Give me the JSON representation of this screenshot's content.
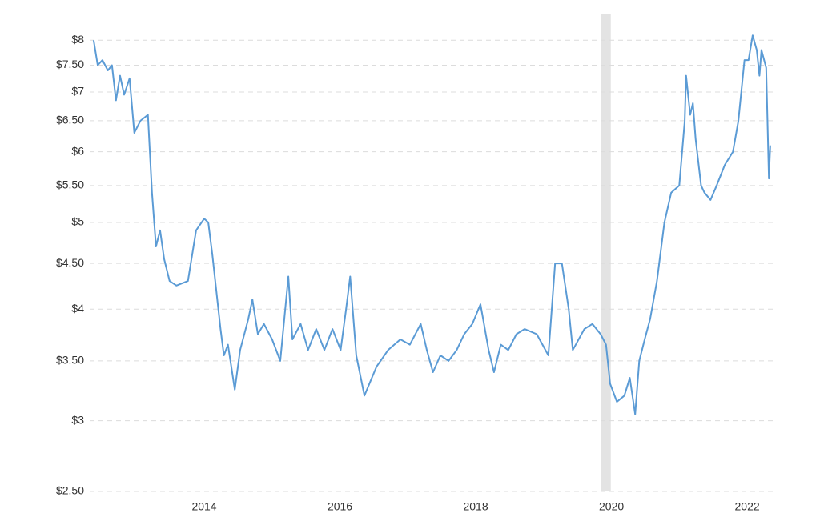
{
  "chart_data": {
    "type": "line",
    "log_scale_y": true,
    "grid": true,
    "xlim": [
      2012.25,
      2022.4
    ],
    "xticks": [
      2014,
      2016,
      2018,
      2020,
      2022
    ],
    "ylim": [
      2.5,
      8.55
    ],
    "yticks": [
      {
        "value": 2.5,
        "label": "$2.50"
      },
      {
        "value": 3,
        "label": "$3"
      },
      {
        "value": 3.5,
        "label": "$3.50"
      },
      {
        "value": 4,
        "label": "$4"
      },
      {
        "value": 4.5,
        "label": "$4.50"
      },
      {
        "value": 5,
        "label": "$5"
      },
      {
        "value": 5.5,
        "label": "$5.50"
      },
      {
        "value": 6,
        "label": "$6"
      },
      {
        "value": 6.5,
        "label": "$6.50"
      },
      {
        "value": 7,
        "label": "$7"
      },
      {
        "value": 7.5,
        "label": "$7.50"
      },
      {
        "value": 8,
        "label": "$8"
      }
    ],
    "recession": [
      2019.84,
      2019.99
    ],
    "recession_color": "#e3e3e3",
    "color": "#5b9bd5",
    "x": [
      2012.37,
      2012.43,
      2012.5,
      2012.58,
      2012.64,
      2012.7,
      2012.76,
      2012.82,
      2012.9,
      2012.97,
      2013.06,
      2013.17,
      2013.23,
      2013.29,
      2013.35,
      2013.41,
      2013.49,
      2013.59,
      2013.76,
      2013.88,
      2014.0,
      2014.06,
      2014.12,
      2014.24,
      2014.29,
      2014.35,
      2014.45,
      2014.53,
      2014.65,
      2014.71,
      2014.79,
      2014.88,
      2015.0,
      2015.12,
      2015.24,
      2015.3,
      2015.42,
      2015.53,
      2015.65,
      2015.77,
      2015.89,
      2016.01,
      2016.09,
      2016.15,
      2016.24,
      2016.36,
      2016.54,
      2016.71,
      2016.89,
      2017.03,
      2017.19,
      2017.28,
      2017.37,
      2017.48,
      2017.6,
      2017.72,
      2017.83,
      2017.95,
      2018.07,
      2018.19,
      2018.27,
      2018.37,
      2018.48,
      2018.6,
      2018.72,
      2018.9,
      2019.07,
      2019.17,
      2019.27,
      2019.37,
      2019.43,
      2019.6,
      2019.72,
      2019.84,
      2019.92,
      2019.98,
      2020.08,
      2020.19,
      2020.27,
      2020.35,
      2020.41,
      2020.49,
      2020.57,
      2020.67,
      2020.78,
      2020.88,
      2021.0,
      2021.08,
      2021.1,
      2021.16,
      2021.2,
      2021.24,
      2021.32,
      2021.37,
      2021.46,
      2021.55,
      2021.67,
      2021.79,
      2021.87,
      2021.96,
      2022.02,
      2022.08,
      2022.14,
      2022.18,
      2022.21,
      2022.28,
      2022.32,
      2022.34
    ],
    "values": [
      8.0,
      7.5,
      7.6,
      7.4,
      7.5,
      6.85,
      7.3,
      6.95,
      7.25,
      6.3,
      6.5,
      6.6,
      5.4,
      4.7,
      4.9,
      4.55,
      4.3,
      4.25,
      4.3,
      4.9,
      5.05,
      5.0,
      4.6,
      3.8,
      3.55,
      3.65,
      3.25,
      3.6,
      3.9,
      4.1,
      3.75,
      3.85,
      3.7,
      3.5,
      4.35,
      3.7,
      3.85,
      3.6,
      3.8,
      3.6,
      3.8,
      3.6,
      4.0,
      4.35,
      3.55,
      3.2,
      3.45,
      3.6,
      3.7,
      3.65,
      3.85,
      3.6,
      3.4,
      3.55,
      3.5,
      3.6,
      3.75,
      3.85,
      4.05,
      3.6,
      3.4,
      3.65,
      3.6,
      3.75,
      3.8,
      3.75,
      3.55,
      4.5,
      4.5,
      4.0,
      3.6,
      3.8,
      3.85,
      3.75,
      3.65,
      3.3,
      3.15,
      3.2,
      3.35,
      3.05,
      3.5,
      3.7,
      3.9,
      4.3,
      5.0,
      5.4,
      5.5,
      6.5,
      7.3,
      6.6,
      6.8,
      6.2,
      5.5,
      5.4,
      5.3,
      5.5,
      5.8,
      6.0,
      6.5,
      7.6,
      7.6,
      8.1,
      7.8,
      7.3,
      7.8,
      7.45,
      5.6,
      6.1
    ]
  }
}
